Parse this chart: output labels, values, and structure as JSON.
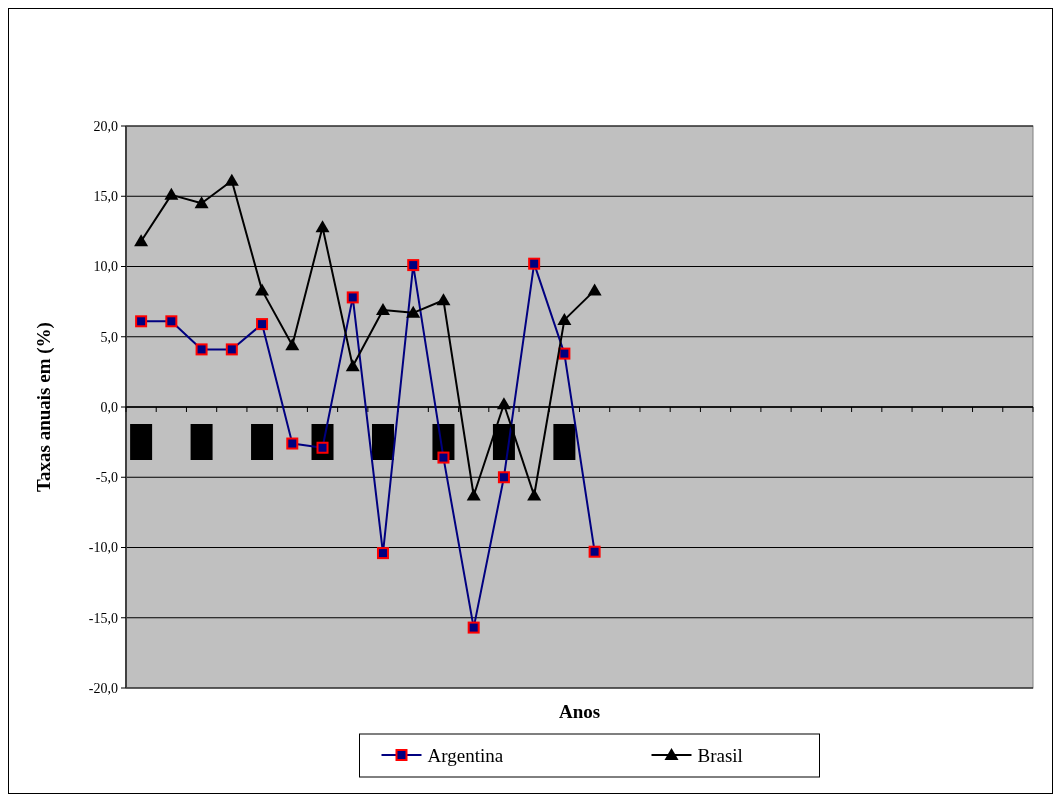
{
  "chart_data": {
    "type": "line",
    "xlabel": "Anos",
    "ylabel": "Taxas anuais em (%)",
    "categories": [
      null,
      null,
      null,
      null,
      null,
      null,
      null,
      null,
      null,
      null,
      null,
      null,
      null,
      null,
      null,
      null,
      null,
      null,
      null,
      null,
      null,
      null,
      null,
      null,
      null,
      null,
      null,
      null,
      null,
      null
    ],
    "series": [
      {
        "name": "Argentina",
        "color": "#000080",
        "marker": "square",
        "values": [
          6.1,
          6.1,
          4.1,
          4.1,
          5.9,
          -2.6,
          -2.9,
          7.8,
          -10.4,
          10.1,
          -3.6,
          -15.7,
          -5.0,
          10.2,
          3.8,
          -10.3,
          null,
          null,
          null,
          null,
          null,
          null,
          null,
          null,
          null,
          null,
          null,
          null,
          null,
          null
        ]
      },
      {
        "name": "Brasil",
        "color": "#000000",
        "marker": "triangle",
        "values": [
          11.8,
          15.1,
          14.5,
          16.1,
          8.3,
          4.4,
          12.8,
          2.9,
          6.9,
          6.7,
          7.6,
          -6.3,
          0.2,
          -6.3,
          6.2,
          8.3,
          null,
          null,
          null,
          null,
          null,
          null,
          null,
          null,
          null,
          null,
          null,
          null,
          null,
          null
        ]
      }
    ],
    "ylim": [
      -20,
      20
    ],
    "yticks": [
      {
        "value": -20,
        "label": "-20,0"
      },
      {
        "value": -15,
        "label": "-15,0"
      },
      {
        "value": -10,
        "label": "-10,0"
      },
      {
        "value": -5,
        "label": "-5,0"
      },
      {
        "value": 0,
        "label": "0,0"
      },
      {
        "value": 5,
        "label": "5,0"
      },
      {
        "value": 10,
        "label": "10,0"
      },
      {
        "value": 15,
        "label": "15,0"
      },
      {
        "value": 20,
        "label": "20,0"
      }
    ],
    "grid": "y",
    "legend": "bottom",
    "tick_labels": "y",
    "line_style": "solid"
  }
}
